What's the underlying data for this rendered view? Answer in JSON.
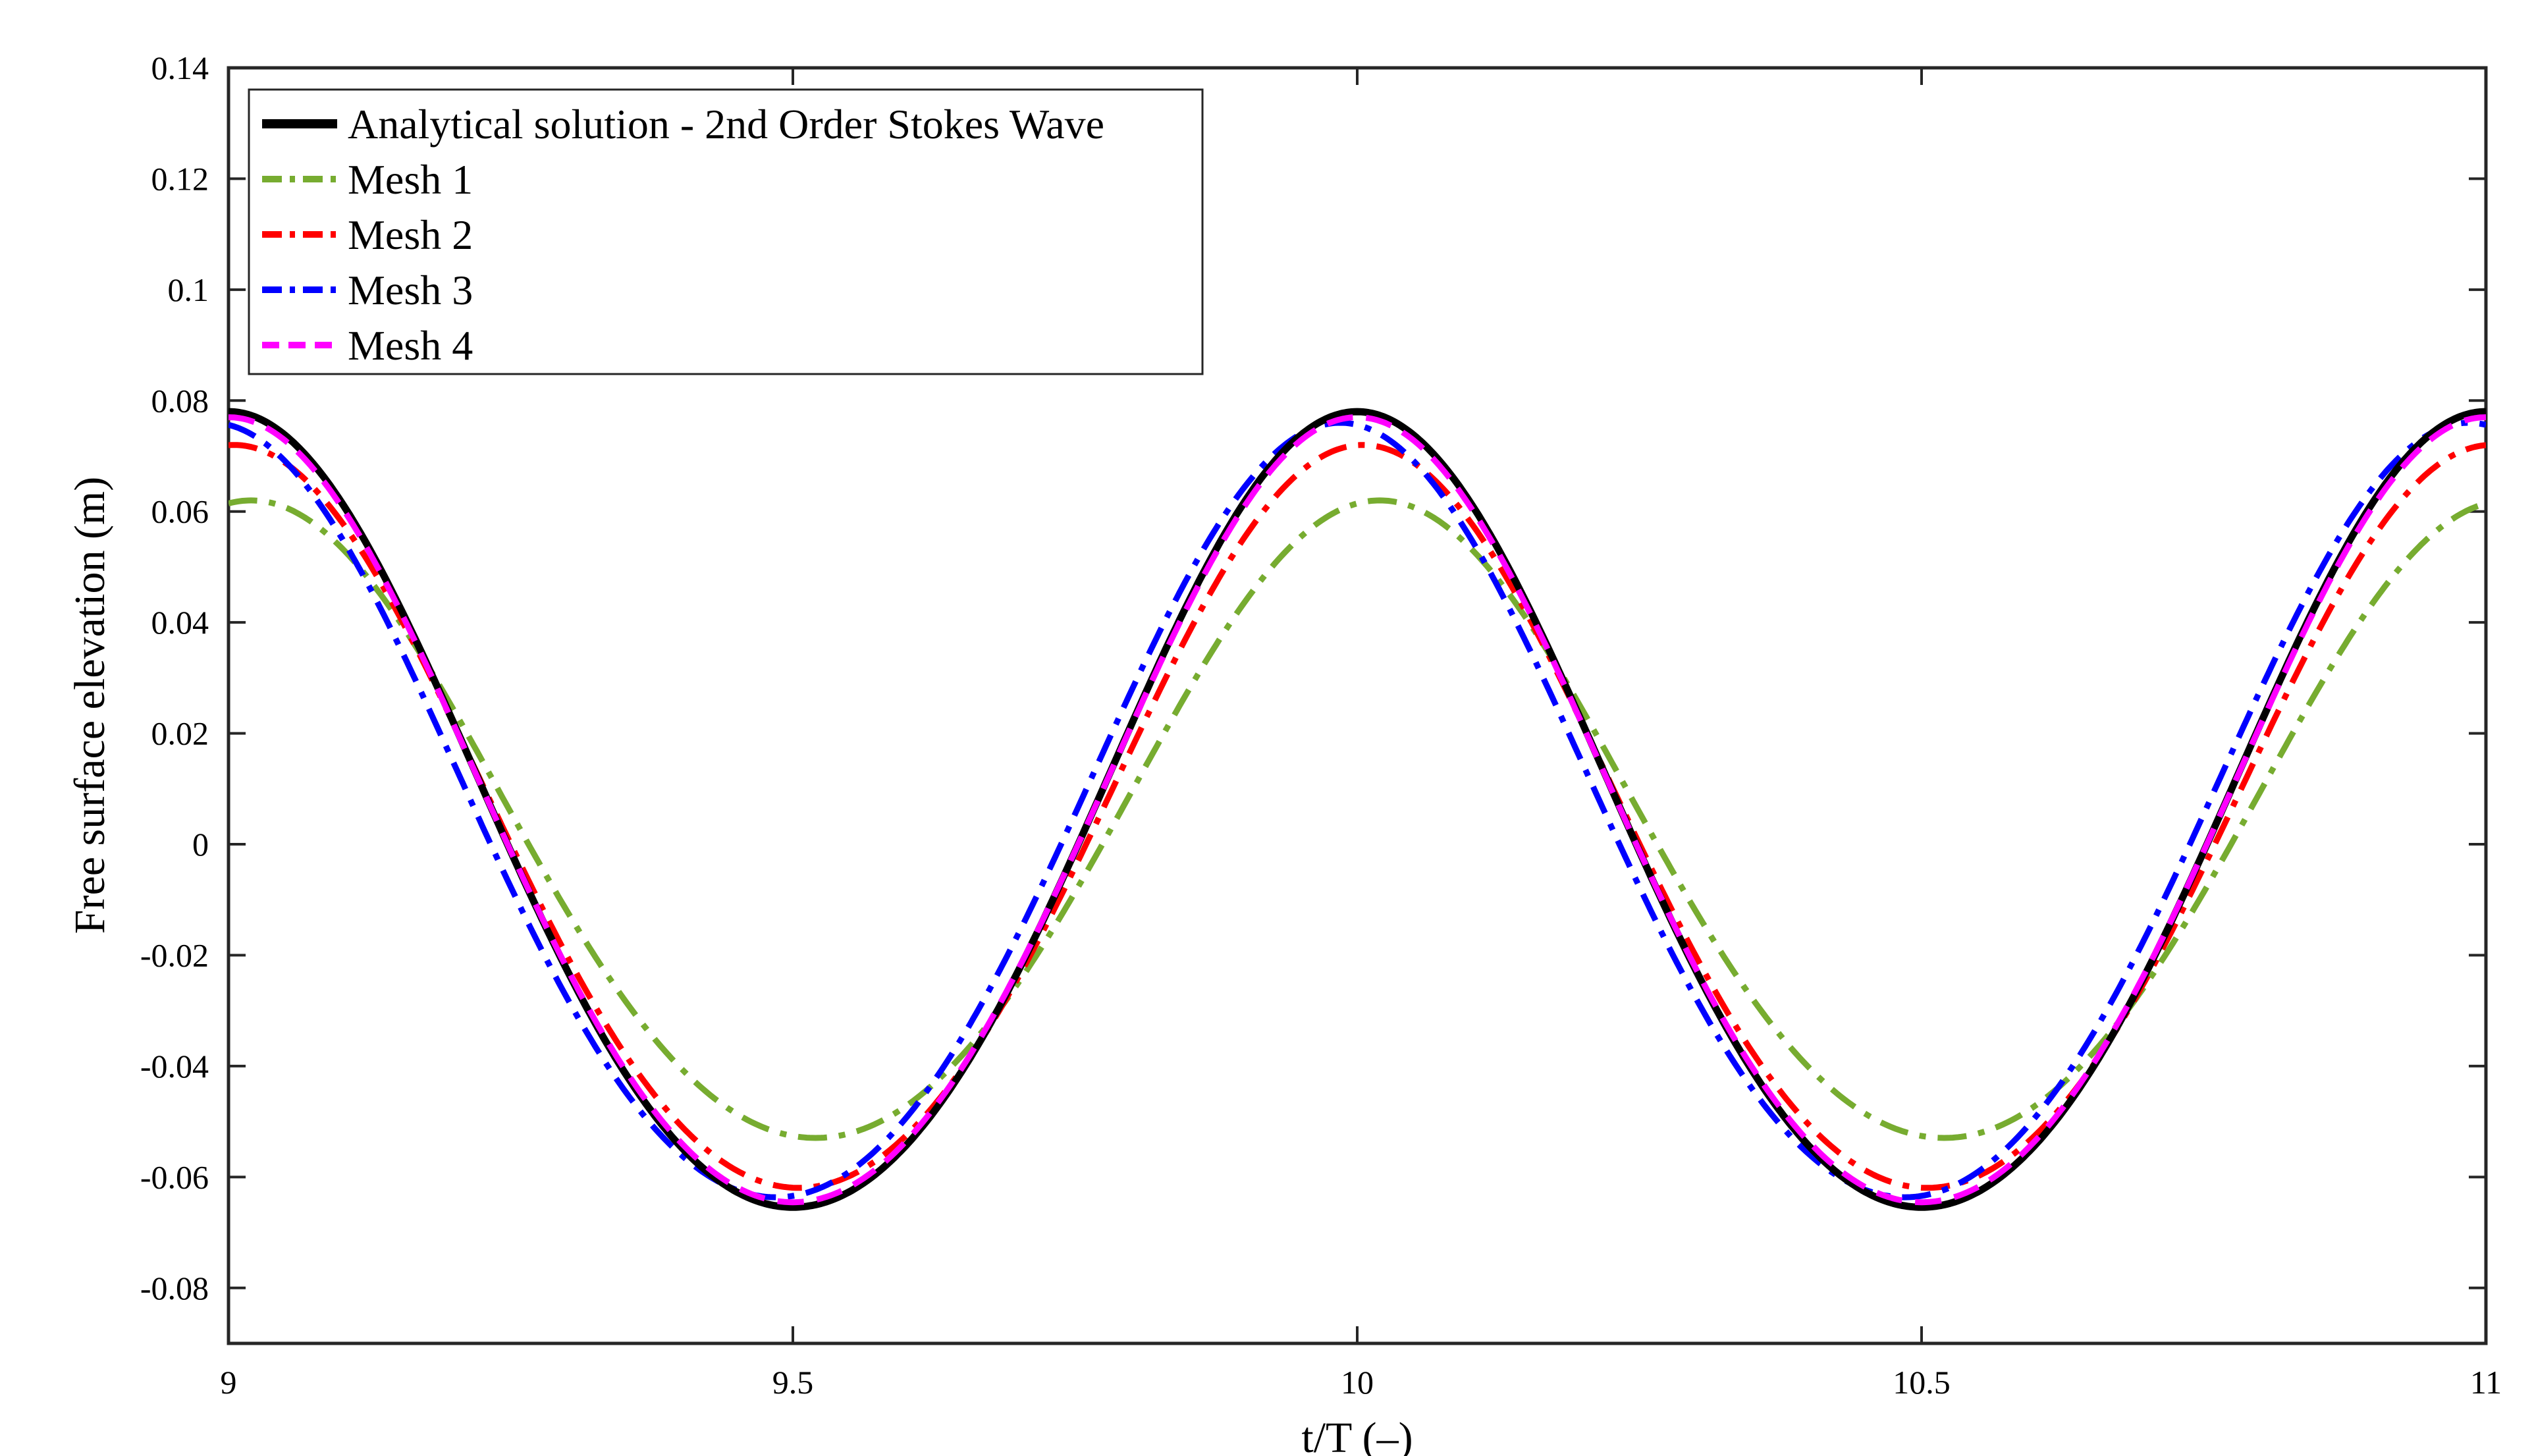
{
  "chart_data": {
    "type": "line",
    "title": "",
    "xlabel": "t/T (–)",
    "ylabel": "Free surface elevation (m)",
    "xlim": [
      9,
      11
    ],
    "ylim": [
      -0.09,
      0.14
    ],
    "xticks": [
      9,
      9.5,
      10,
      10.5,
      11
    ],
    "xtick_labels": [
      "9",
      "9.5",
      "10",
      "10.5",
      "11"
    ],
    "yticks": [
      -0.08,
      -0.06,
      -0.04,
      -0.02,
      0,
      0.02,
      0.04,
      0.06,
      0.08,
      0.1,
      0.12,
      0.14
    ],
    "ytick_labels": [
      "-0.08",
      "-0.06",
      "-0.04",
      "-0.02",
      "0",
      "0.02",
      "0.04",
      "0.06",
      "0.08",
      "0.1",
      "0.12",
      "0.14"
    ],
    "grid": false,
    "legend_position": "top-left",
    "series": [
      {
        "name": "Analytical solution - 2nd Order Stokes Wave",
        "color": "#000000",
        "style": "solid",
        "crest": 0.078,
        "trough": -0.073,
        "phase_shift": 0.0,
        "samples": {
          "x": [
            9,
            9.25,
            9.5,
            9.75,
            10,
            10.25,
            10.5,
            10.75,
            11
          ],
          "y": [
            0.078,
            0.0025,
            -0.073,
            0.0025,
            0.078,
            0.0025,
            -0.073,
            0.0025,
            0.078
          ]
        }
      },
      {
        "name": "Mesh 1",
        "color": "#77AC30",
        "style": "dashdot",
        "crest": 0.062,
        "trough": -0.059,
        "phase_shift": 0.02,
        "samples": {
          "x": [
            9,
            9.25,
            9.5,
            9.75,
            10,
            10.25,
            10.5,
            10.75,
            11
          ],
          "y": [
            0.061,
            0.012,
            -0.059,
            -0.012,
            0.062,
            0.012,
            -0.058,
            -0.012,
            0.062
          ]
        }
      },
      {
        "name": "Mesh 2",
        "color": "#FF0000",
        "style": "dashdot",
        "crest": 0.072,
        "trough": -0.069,
        "phase_shift": 0.005,
        "samples": {
          "x": [
            9,
            9.25,
            9.5,
            9.75,
            10,
            10.25,
            10.5,
            10.75,
            11
          ],
          "y": [
            0.071,
            0.003,
            -0.069,
            -0.003,
            0.072,
            0.003,
            -0.068,
            -0.003,
            0.072
          ]
        }
      },
      {
        "name": "Mesh 3",
        "color": "#0000FF",
        "style": "dashdot",
        "crest": 0.076,
        "trough": -0.071,
        "phase_shift": -0.015,
        "samples": {
          "x": [
            9,
            9.25,
            9.5,
            9.75,
            10,
            10.25,
            10.5,
            10.75,
            11
          ],
          "y": [
            0.074,
            -0.008,
            -0.071,
            0.012,
            0.076,
            -0.008,
            -0.07,
            0.012,
            0.076
          ]
        }
      },
      {
        "name": "Mesh 4",
        "color": "#FF00FF",
        "style": "dashed",
        "crest": 0.077,
        "trough": -0.072,
        "phase_shift": 0.0,
        "samples": {
          "x": [
            9,
            9.25,
            9.5,
            9.75,
            10,
            10.25,
            10.5,
            10.75,
            11
          ],
          "y": [
            0.077,
            0.0025,
            -0.072,
            0.0025,
            0.077,
            0.0025,
            -0.072,
            0.0025,
            0.077
          ]
        }
      }
    ]
  }
}
